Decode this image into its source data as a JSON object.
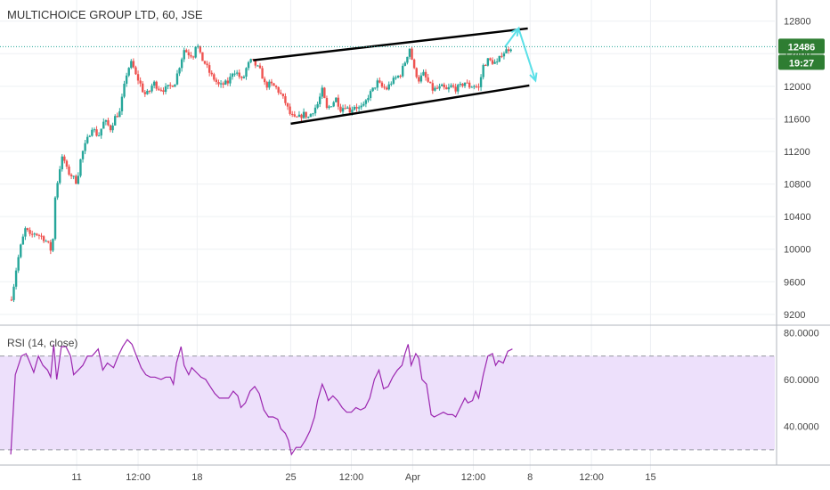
{
  "title": "MULTICHOICE GROUP LTD, 60, JSE",
  "colors": {
    "up": "#26a69a",
    "down": "#ef5350",
    "price_line": "#26a69a",
    "badge_bg": "#2e7d32",
    "rsi_line": "#9c27b0",
    "rsi_band": "#ede0fb",
    "arrow": "#5be0e8",
    "grid": "#eef0f3"
  },
  "chart_data": [
    {
      "type": "candlestick",
      "title": "MULTICHOICE GROUP LTD, 60, JSE",
      "ylim": [
        9100,
        12950
      ],
      "y_ticks": [
        9200,
        9600,
        10000,
        10400,
        10800,
        11200,
        11600,
        12000,
        12400,
        12800
      ],
      "y_tick_labels": [
        "9200",
        "9600",
        "10000",
        "10400",
        "10800",
        "11200",
        "11600",
        "12000",
        "12400",
        "12800"
      ],
      "x_labels": [
        "11",
        "12:00",
        "18",
        "25",
        "12:00",
        "Apr",
        "12:00",
        "8",
        "12:00",
        "15"
      ],
      "x_range": [
        -10,
        1000
      ],
      "x_positions": [
        90,
        170,
        247,
        369,
        448,
        528,
        607,
        681,
        761,
        838
      ],
      "current_price": 12486,
      "countdown": "19:27",
      "anchors": [
        [
          2,
          9380
        ],
        [
          6,
          9420
        ],
        [
          10,
          9700
        ],
        [
          16,
          10000
        ],
        [
          24,
          10280
        ],
        [
          28,
          10150
        ],
        [
          35,
          10200
        ],
        [
          45,
          10150
        ],
        [
          52,
          10080
        ],
        [
          58,
          9950
        ],
        [
          62,
          10650
        ],
        [
          68,
          11000
        ],
        [
          72,
          11150
        ],
        [
          78,
          10950
        ],
        [
          84,
          10900
        ],
        [
          90,
          10820
        ],
        [
          96,
          11150
        ],
        [
          104,
          11350
        ],
        [
          110,
          11500
        ],
        [
          118,
          11380
        ],
        [
          126,
          11580
        ],
        [
          134,
          11480
        ],
        [
          140,
          11620
        ],
        [
          146,
          11680
        ],
        [
          150,
          11900
        ],
        [
          156,
          12200
        ],
        [
          162,
          12300
        ],
        [
          166,
          12150
        ],
        [
          172,
          12050
        ],
        [
          178,
          11900
        ],
        [
          184,
          11920
        ],
        [
          190,
          12050
        ],
        [
          196,
          11980
        ],
        [
          204,
          11960
        ],
        [
          212,
          12000
        ],
        [
          218,
          12050
        ],
        [
          224,
          12250
        ],
        [
          230,
          12450
        ],
        [
          236,
          12400
        ],
        [
          242,
          12380
        ],
        [
          246,
          12550
        ],
        [
          252,
          12350
        ],
        [
          258,
          12270
        ],
        [
          264,
          12150
        ],
        [
          270,
          12080
        ],
        [
          276,
          12000
        ],
        [
          282,
          12030
        ],
        [
          288,
          12050
        ],
        [
          294,
          12200
        ],
        [
          300,
          12150
        ],
        [
          306,
          12060
        ],
        [
          312,
          12250
        ],
        [
          318,
          12320
        ],
        [
          324,
          12250
        ],
        [
          330,
          12180
        ],
        [
          336,
          12000
        ],
        [
          342,
          12030
        ],
        [
          350,
          11980
        ],
        [
          356,
          11900
        ],
        [
          362,
          11800
        ],
        [
          368,
          11660
        ],
        [
          374,
          11600
        ],
        [
          380,
          11620
        ],
        [
          386,
          11660
        ],
        [
          392,
          11620
        ],
        [
          398,
          11700
        ],
        [
          404,
          11780
        ],
        [
          410,
          11950
        ],
        [
          416,
          11720
        ],
        [
          422,
          11780
        ],
        [
          428,
          11850
        ],
        [
          434,
          11720
        ],
        [
          440,
          11760
        ],
        [
          446,
          11700
        ],
        [
          452,
          11760
        ],
        [
          458,
          11730
        ],
        [
          464,
          11750
        ],
        [
          470,
          11880
        ],
        [
          476,
          11960
        ],
        [
          482,
          12050
        ],
        [
          488,
          11990
        ],
        [
          494,
          11970
        ],
        [
          500,
          12050
        ],
        [
          506,
          12100
        ],
        [
          512,
          12150
        ],
        [
          518,
          12300
        ],
        [
          524,
          12470
        ],
        [
          530,
          12200
        ],
        [
          536,
          12080
        ],
        [
          542,
          12150
        ],
        [
          548,
          12050
        ],
        [
          554,
          11960
        ],
        [
          560,
          11970
        ],
        [
          566,
          11990
        ],
        [
          572,
          11950
        ],
        [
          578,
          12000
        ],
        [
          584,
          11970
        ],
        [
          590,
          12000
        ],
        [
          596,
          12050
        ],
        [
          602,
          12000
        ],
        [
          608,
          12010
        ],
        [
          614,
          11980
        ],
        [
          620,
          12250
        ],
        [
          626,
          12320
        ],
        [
          632,
          12300
        ],
        [
          638,
          12280
        ],
        [
          644,
          12400
        ],
        [
          650,
          12440
        ],
        [
          656,
          12480
        ]
      ],
      "channel_upper": [
        [
          320,
          12320
        ],
        [
          678,
          12710
        ]
      ],
      "channel_lower": [
        [
          369,
          11540
        ],
        [
          680,
          12010
        ]
      ],
      "projection_arrow": [
        [
          648,
          12480
        ],
        [
          666,
          12710
        ],
        [
          688,
          12070
        ]
      ]
    },
    {
      "type": "line",
      "title": "RSI (14, close)",
      "ylim": [
        25,
        82
      ],
      "y_ticks": [
        40,
        60,
        80
      ],
      "y_tick_labels": [
        "40.0000",
        "60.0000",
        "80.0000"
      ],
      "band": [
        30,
        70
      ],
      "points": [
        [
          4,
          28
        ],
        [
          10,
          62
        ],
        [
          14,
          66
        ],
        [
          18,
          70
        ],
        [
          24,
          71
        ],
        [
          28,
          68
        ],
        [
          34,
          63
        ],
        [
          40,
          70
        ],
        [
          46,
          66
        ],
        [
          52,
          64
        ],
        [
          56,
          61
        ],
        [
          60,
          75
        ],
        [
          64,
          60
        ],
        [
          70,
          74
        ],
        [
          76,
          74
        ],
        [
          82,
          70
        ],
        [
          86,
          62
        ],
        [
          92,
          64
        ],
        [
          98,
          66
        ],
        [
          104,
          70
        ],
        [
          110,
          70
        ],
        [
          118,
          73
        ],
        [
          124,
          64
        ],
        [
          130,
          67
        ],
        [
          138,
          65
        ],
        [
          144,
          70
        ],
        [
          150,
          74
        ],
        [
          156,
          77
        ],
        [
          162,
          75
        ],
        [
          168,
          70
        ],
        [
          174,
          65
        ],
        [
          180,
          62
        ],
        [
          186,
          61
        ],
        [
          192,
          61
        ],
        [
          200,
          60
        ],
        [
          206,
          61
        ],
        [
          212,
          61
        ],
        [
          216,
          58
        ],
        [
          220,
          67
        ],
        [
          226,
          74
        ],
        [
          230,
          66
        ],
        [
          236,
          62
        ],
        [
          240,
          65
        ],
        [
          246,
          63
        ],
        [
          252,
          61
        ],
        [
          258,
          60
        ],
        [
          264,
          57
        ],
        [
          270,
          54
        ],
        [
          276,
          52
        ],
        [
          282,
          52
        ],
        [
          288,
          52
        ],
        [
          294,
          55
        ],
        [
          300,
          53
        ],
        [
          304,
          48
        ],
        [
          310,
          50
        ],
        [
          316,
          55
        ],
        [
          322,
          57
        ],
        [
          328,
          54
        ],
        [
          334,
          47
        ],
        [
          340,
          44
        ],
        [
          346,
          44
        ],
        [
          352,
          43
        ],
        [
          356,
          39
        ],
        [
          362,
          37
        ],
        [
          366,
          34
        ],
        [
          370,
          28
        ],
        [
          376,
          31
        ],
        [
          382,
          31
        ],
        [
          388,
          34
        ],
        [
          394,
          38
        ],
        [
          400,
          44
        ],
        [
          404,
          51
        ],
        [
          410,
          58
        ],
        [
          414,
          55
        ],
        [
          418,
          51
        ],
        [
          424,
          53
        ],
        [
          430,
          51
        ],
        [
          436,
          48
        ],
        [
          442,
          46
        ],
        [
          448,
          46
        ],
        [
          454,
          48
        ],
        [
          460,
          47
        ],
        [
          466,
          48
        ],
        [
          472,
          52
        ],
        [
          478,
          60
        ],
        [
          484,
          64
        ],
        [
          490,
          56
        ],
        [
          496,
          57
        ],
        [
          502,
          61
        ],
        [
          508,
          64
        ],
        [
          514,
          66
        ],
        [
          518,
          71
        ],
        [
          522,
          75
        ],
        [
          526,
          66
        ],
        [
          532,
          71
        ],
        [
          536,
          69
        ],
        [
          540,
          60
        ],
        [
          546,
          58
        ],
        [
          552,
          45
        ],
        [
          556,
          44
        ],
        [
          562,
          45
        ],
        [
          568,
          46
        ],
        [
          574,
          45
        ],
        [
          580,
          45
        ],
        [
          584,
          44
        ],
        [
          590,
          48
        ],
        [
          596,
          52
        ],
        [
          600,
          50
        ],
        [
          606,
          51
        ],
        [
          610,
          55
        ],
        [
          614,
          52
        ],
        [
          620,
          62
        ],
        [
          626,
          70
        ],
        [
          632,
          71
        ],
        [
          636,
          66
        ],
        [
          640,
          68
        ],
        [
          646,
          67
        ],
        [
          652,
          72
        ],
        [
          658,
          73
        ]
      ]
    }
  ]
}
